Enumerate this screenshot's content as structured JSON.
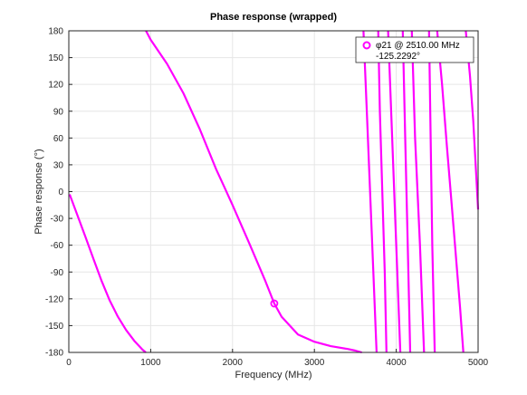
{
  "chart_data": {
    "type": "line",
    "title": "Phase response (wrapped)",
    "xlabel": "Frequency (MHz)",
    "ylabel": "Phase response (°)",
    "xlim": [
      0,
      5000
    ],
    "ylim": [
      -180,
      180
    ],
    "xticks": [
      0,
      1000,
      2000,
      3000,
      4000,
      5000
    ],
    "yticks": [
      -180,
      -150,
      -120,
      -90,
      -60,
      -30,
      0,
      30,
      60,
      90,
      120,
      150,
      180
    ],
    "grid": true,
    "legend_position": "top-right",
    "series": [
      {
        "name": "",
        "color": "#ff00ff",
        "points": [
          [
            10,
            -3
          ],
          [
            100,
            -25
          ],
          [
            200,
            -50
          ],
          [
            300,
            -75
          ],
          [
            400,
            -100
          ],
          [
            500,
            -122
          ],
          [
            600,
            -140
          ],
          [
            700,
            -155
          ],
          [
            800,
            -167
          ],
          [
            900,
            -177
          ],
          [
            940,
            -180
          ],
          [
            942,
            180
          ],
          [
            1000,
            170
          ],
          [
            1200,
            143
          ],
          [
            1400,
            110
          ],
          [
            1600,
            70
          ],
          [
            1800,
            25
          ],
          [
            1900,
            5
          ],
          [
            2000,
            -15
          ],
          [
            2200,
            -57
          ],
          [
            2400,
            -100
          ],
          [
            2510,
            -125.2292
          ],
          [
            2600,
            -140
          ],
          [
            2800,
            -160
          ],
          [
            3000,
            -168
          ],
          [
            3200,
            -173
          ],
          [
            3400,
            -176
          ],
          [
            3500,
            -178
          ],
          [
            3580,
            -180
          ],
          [
            3600,
            180
          ],
          [
            3640,
            90
          ],
          [
            3680,
            0
          ],
          [
            3720,
            -90
          ],
          [
            3760,
            -180
          ],
          [
            3780,
            180
          ],
          [
            3800,
            90
          ],
          [
            3830,
            0
          ],
          [
            3860,
            -90
          ],
          [
            3880,
            -180
          ],
          [
            3900,
            180
          ],
          [
            3950,
            60
          ],
          [
            4000,
            -60
          ],
          [
            4050,
            -180
          ],
          [
            4080,
            180
          ],
          [
            4110,
            60
          ],
          [
            4140,
            -60
          ],
          [
            4170,
            -180
          ],
          [
            4190,
            180
          ],
          [
            4230,
            60
          ],
          [
            4290,
            -60
          ],
          [
            4340,
            -180
          ],
          [
            4400,
            180
          ],
          [
            4420,
            60
          ],
          [
            4440,
            -60
          ],
          [
            4470,
            -180
          ],
          [
            4500,
            180
          ],
          [
            4560,
            120
          ],
          [
            4620,
            50
          ],
          [
            4700,
            -40
          ],
          [
            4780,
            -130
          ],
          [
            4820,
            -180
          ],
          [
            4850,
            180
          ],
          [
            4900,
            130
          ],
          [
            4940,
            80
          ],
          [
            4970,
            30
          ],
          [
            5000,
            -20
          ]
        ]
      }
    ],
    "marker": {
      "x": 2510,
      "y": -125.2292,
      "label": "φ21 @ 2510.00 MHz",
      "value_label": "-125.2292°"
    }
  }
}
